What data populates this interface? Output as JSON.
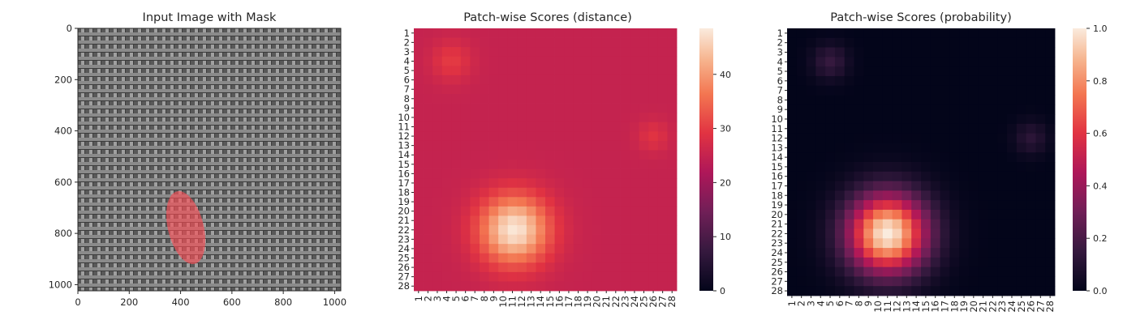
{
  "chart_data": [
    {
      "type": "image",
      "title": "Input Image with Mask",
      "xlim": [
        0,
        1024
      ],
      "ylim": [
        1024,
        0
      ],
      "xticks": [
        "0",
        "200",
        "400",
        "600",
        "800",
        "1000"
      ],
      "yticks": [
        "0",
        "200",
        "400",
        "600",
        "800",
        "1000"
      ],
      "mask_color": "#ff4d55",
      "fabric_color": "#6d6d6d"
    },
    {
      "type": "heatmap",
      "title": "Patch-wise Scores (distance)",
      "rows": [
        "1",
        "2",
        "3",
        "4",
        "5",
        "6",
        "7",
        "8",
        "9",
        "10",
        "11",
        "12",
        "13",
        "14",
        "15",
        "16",
        "17",
        "18",
        "19",
        "20",
        "21",
        "22",
        "23",
        "24",
        "25",
        "26",
        "27",
        "28"
      ],
      "cols": [
        "1",
        "2",
        "3",
        "4",
        "5",
        "6",
        "7",
        "8",
        "9",
        "10",
        "11",
        "12",
        "13",
        "14",
        "15",
        "16",
        "17",
        "18",
        "19",
        "20",
        "21",
        "22",
        "23",
        "24",
        "25",
        "26",
        "27",
        "28"
      ],
      "colormap": "rocket",
      "colorbar": {
        "min": 0,
        "max": 48.5,
        "ticks": [
          "0",
          "10",
          "20",
          "30",
          "40"
        ]
      },
      "baseline": 25,
      "hotspots": [
        {
          "row": 22,
          "col": 11.2,
          "peak": 48,
          "sigma": 2.6
        },
        {
          "row": 4,
          "col": 4.5,
          "peak": 5,
          "sigma": 1.5
        },
        {
          "row": 12,
          "col": 26,
          "peak": 4,
          "sigma": 1.2
        }
      ]
    },
    {
      "type": "heatmap",
      "title": "Patch-wise Scores (probability)",
      "rows": [
        "1",
        "2",
        "3",
        "4",
        "5",
        "6",
        "7",
        "8",
        "9",
        "10",
        "11",
        "12",
        "13",
        "14",
        "15",
        "16",
        "17",
        "18",
        "19",
        "20",
        "21",
        "22",
        "23",
        "24",
        "25",
        "26",
        "27",
        "28"
      ],
      "cols": [
        "1",
        "2",
        "3",
        "4",
        "5",
        "6",
        "7",
        "8",
        "9",
        "10",
        "11",
        "12",
        "13",
        "14",
        "15",
        "16",
        "17",
        "18",
        "19",
        "20",
        "21",
        "22",
        "23",
        "24",
        "25",
        "26",
        "27",
        "28"
      ],
      "colormap": "rocket",
      "colorbar": {
        "min": 0,
        "max": 1,
        "ticks": [
          "0.0",
          "0.2",
          "0.4",
          "0.6",
          "0.8",
          "1.0"
        ]
      },
      "baseline": 0,
      "hotspots": [
        {
          "row": 22,
          "col": 11,
          "peak": 1.0,
          "sigma": 2.9
        },
        {
          "row": 4,
          "col": 5,
          "peak": 0.15,
          "sigma": 1.3
        },
        {
          "row": 12,
          "col": 26,
          "peak": 0.12,
          "sigma": 1.2
        }
      ]
    }
  ]
}
